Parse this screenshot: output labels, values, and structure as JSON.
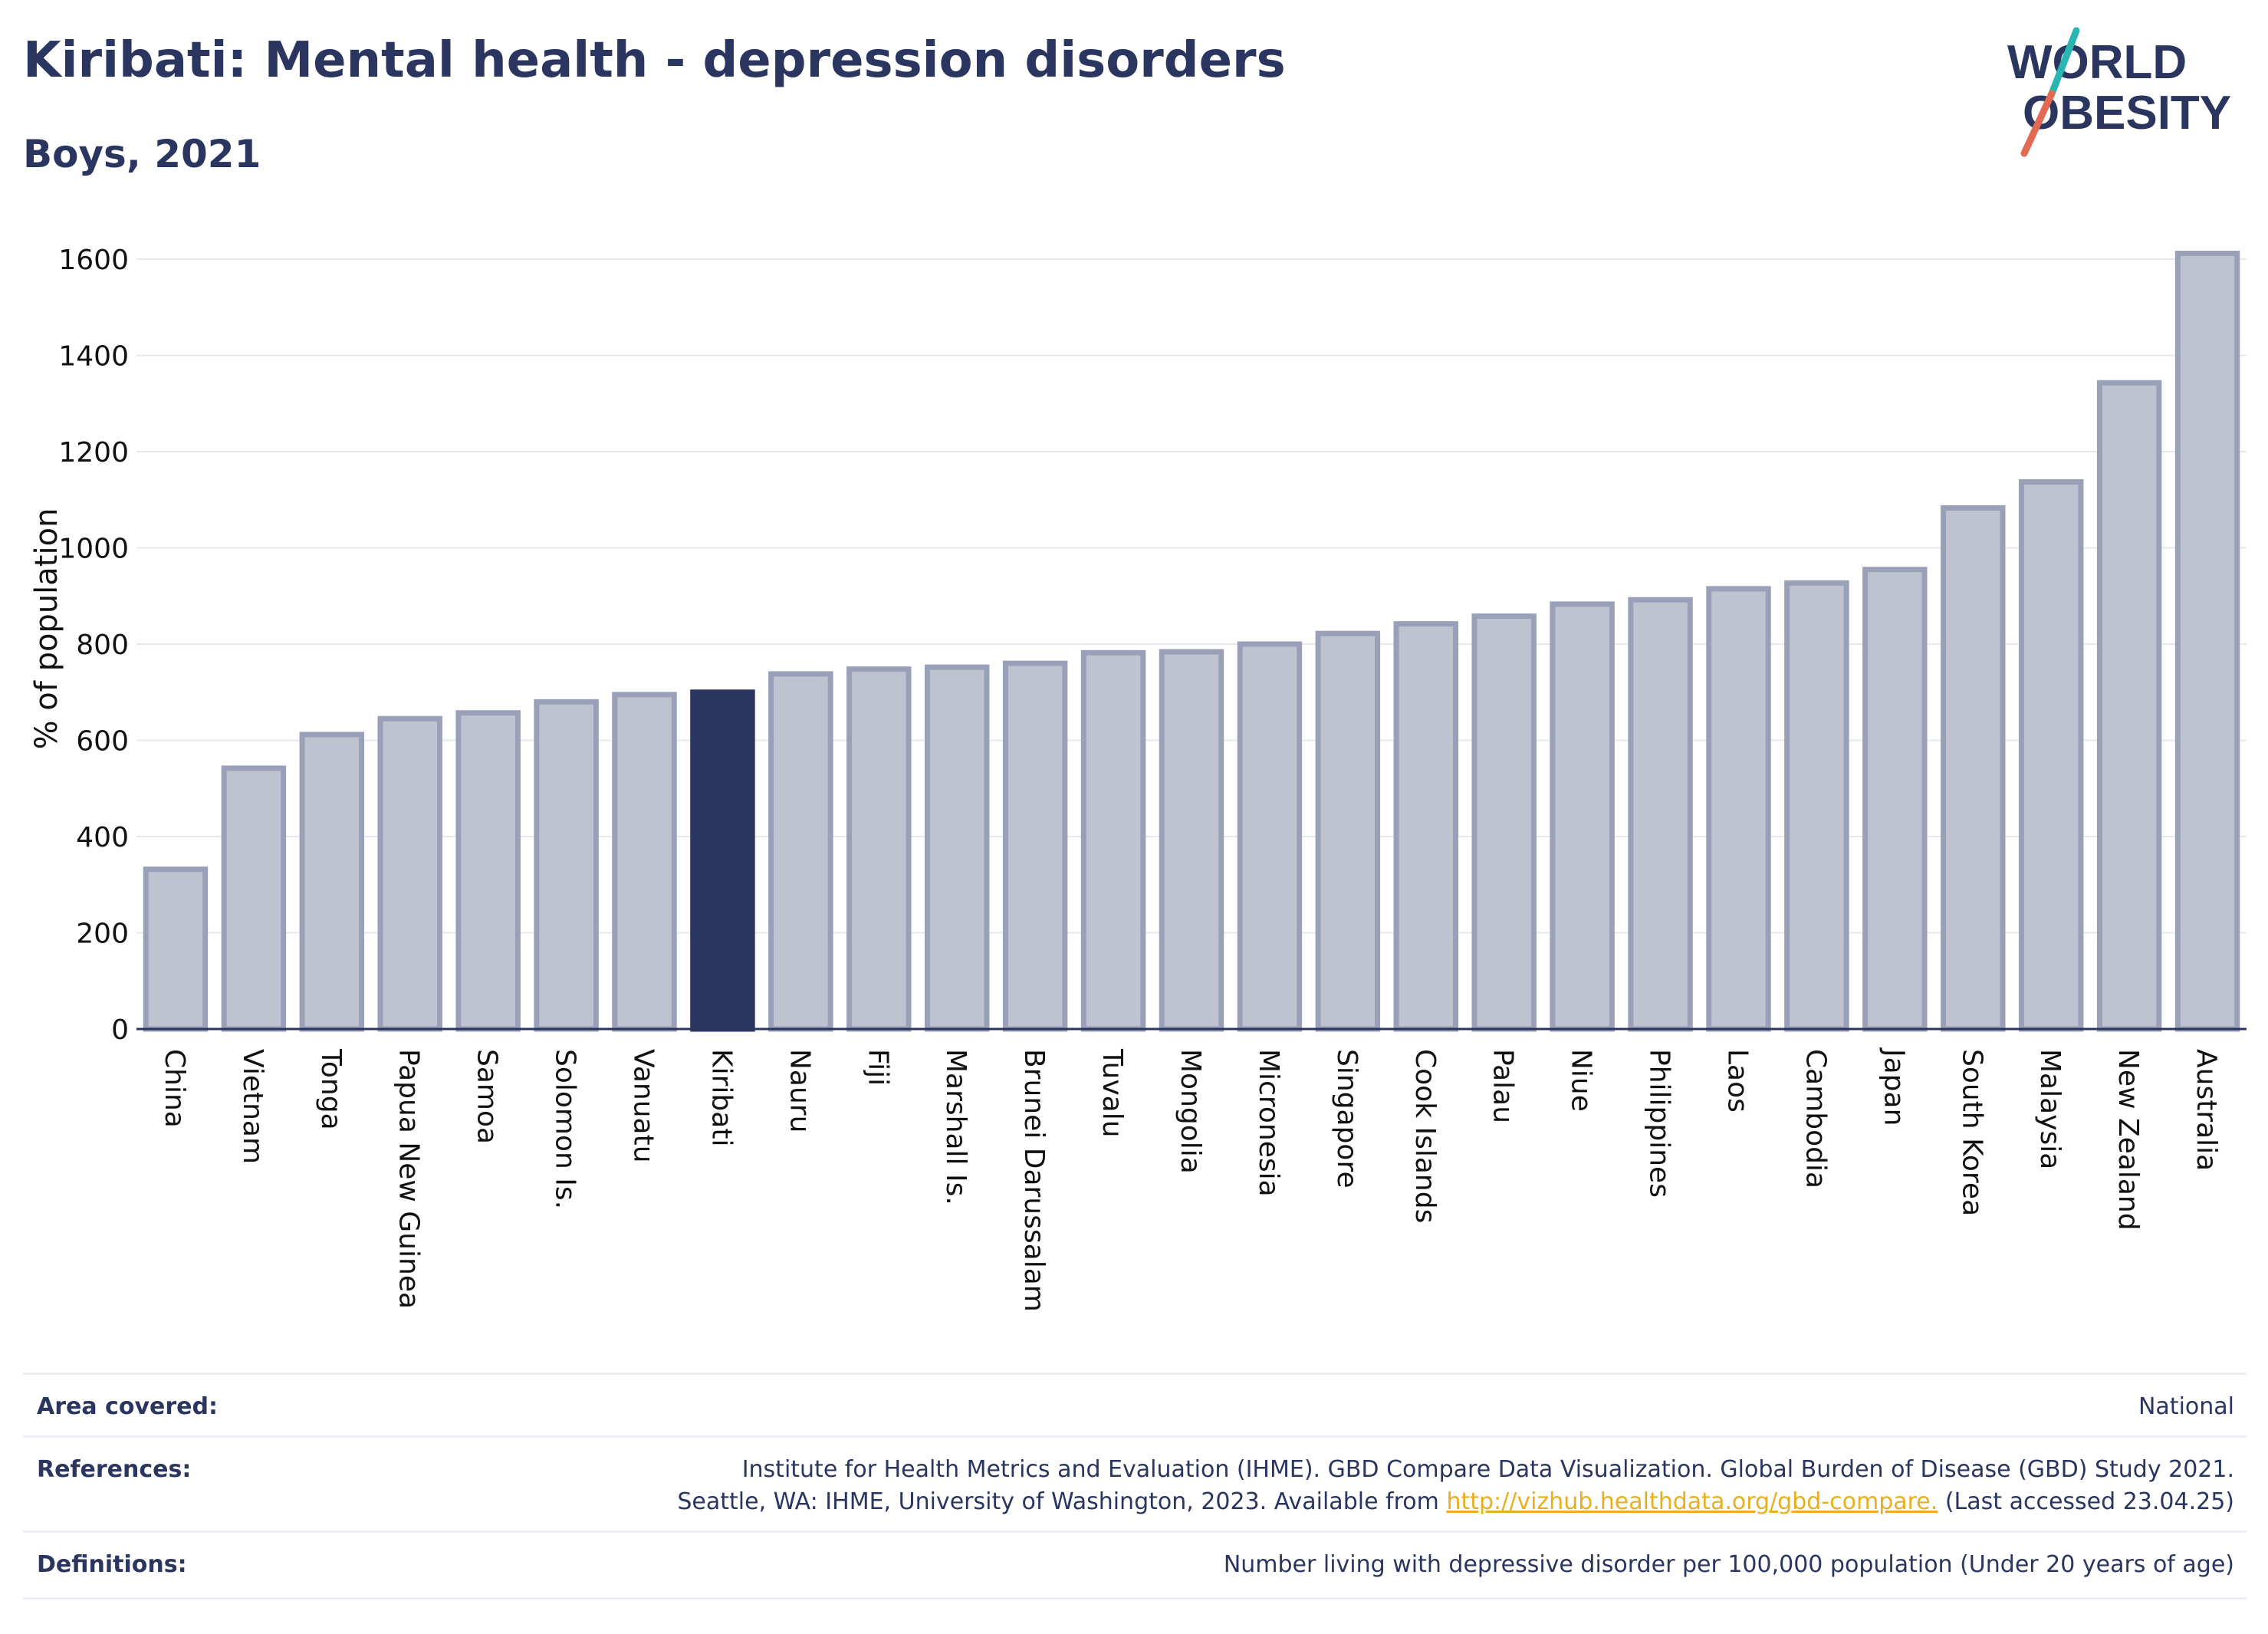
{
  "header": {
    "title": "Kiribati: Mental health - depression disorders",
    "subtitle": "Boys, 2021",
    "logo_line1": "WORLD",
    "logo_line2": "OBESITY"
  },
  "chart_data": {
    "type": "bar",
    "ylabel": "% of population",
    "ylim": [
      0,
      1650
    ],
    "yticks": [
      0,
      200,
      400,
      600,
      800,
      1000,
      1200,
      1400,
      1600
    ],
    "grid": true,
    "highlight": "Kiribati",
    "colors": {
      "bar": "#bfc3d0",
      "bar_edge": "#9aa0b8",
      "highlight": "#2a3560",
      "grid": "#e6e8ee",
      "axis": "#2a3560"
    },
    "categories": [
      "China",
      "Vietnam",
      "Tonga",
      "Papua New Guinea",
      "Samoa",
      "Solomon Is.",
      "Vanuatu",
      "Kiribati",
      "Nauru",
      "Fiji",
      "Marshall Is.",
      "Brunei Darussalam",
      "Tuvalu",
      "Mongolia",
      "Micronesia",
      "Singapore",
      "Cook Islands",
      "Palau",
      "Niue",
      "Philippines",
      "Laos",
      "Cambodia",
      "Japan",
      "South Korea",
      "Malaysia",
      "New Zealand",
      "Australia"
    ],
    "values": [
      332,
      542,
      612,
      645,
      657,
      680,
      695,
      700,
      738,
      748,
      752,
      760,
      782,
      784,
      800,
      822,
      842,
      858,
      883,
      892,
      915,
      927,
      955,
      1083,
      1137,
      1343,
      1612
    ]
  },
  "footer": {
    "area_label": "Area covered:",
    "area_value": "National",
    "references_label": "References:",
    "references_line1": "Institute for Health Metrics and Evaluation (IHME). GBD Compare Data Visualization. Global Burden of Disease (GBD) Study 2021.",
    "references_line2_prefix": "Seattle, WA: IHME, University of Washington, 2023. Available from",
    "references_link": "http://vizhub.healthdata.org/gbd-compare.",
    "references_line2_suffix": "(Last accessed 23.04.25)",
    "definitions_label": "Definitions:",
    "definitions_value": "Number living with depressive disorder per 100,000 population (Under 20 years of age)"
  }
}
